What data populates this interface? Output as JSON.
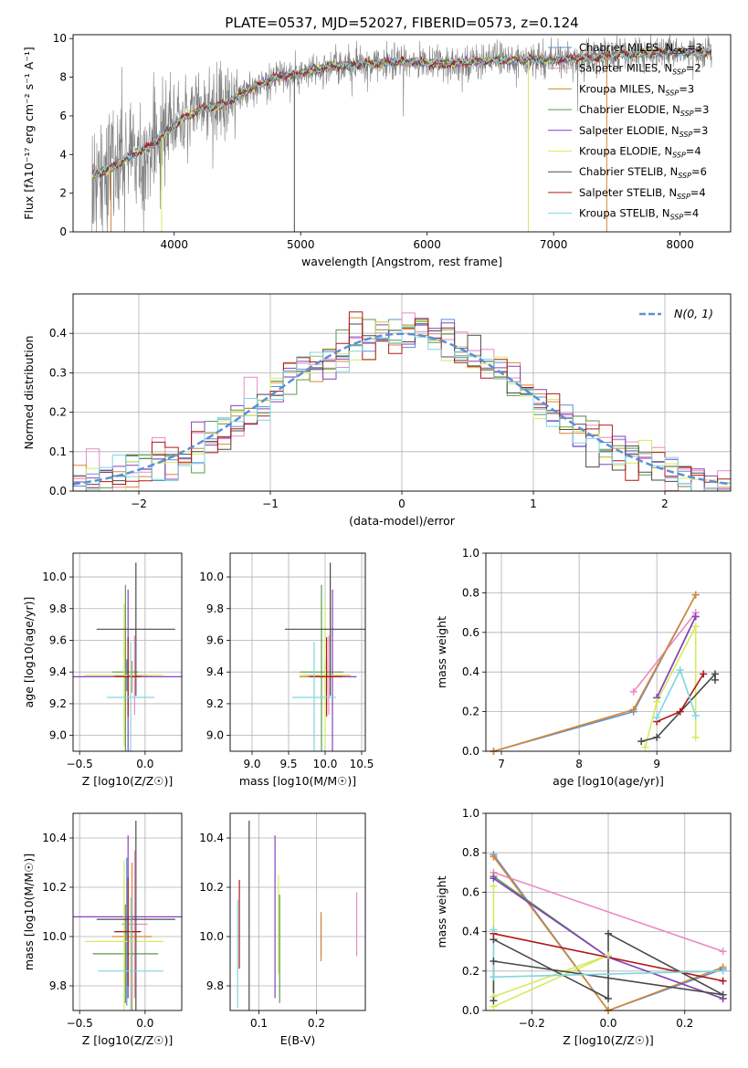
{
  "title": "PLATE=0537, MJD=52027, FIBERID=0573, z=0.124",
  "colors": {
    "Chabrier MILES": "#5a8fd6",
    "Salpeter MILES": "#e98ac4",
    "Kroupa MILES": "#d9882f",
    "Chabrier ELODIE": "#5a9a4a",
    "Salpeter ELODIE": "#8a3fbf",
    "Kroupa ELODIE": "#d6ea5e",
    "Chabrier STELIB": "#4a4a4a",
    "Salpeter STELIB": "#b01818",
    "Kroupa STELIB": "#7fd6e0"
  },
  "chart_data": [
    {
      "id": "spectrum",
      "type": "line",
      "xlabel": "wavelength [Angstrom, rest frame]",
      "ylabel": "Flux [fλ10⁻¹⁷ erg cm⁻² s⁻¹ A⁻¹]",
      "xlim": [
        3200,
        8400
      ],
      "ylim": [
        0,
        10.2
      ],
      "xticks": [
        4000,
        5000,
        6000,
        7000,
        8000
      ],
      "yticks": [
        0,
        2,
        4,
        6,
        8,
        10
      ],
      "grid": false,
      "legend_position": "right",
      "data_color": "#808080",
      "data_envelope": {
        "x": [
          3350,
          3500,
          3650,
          3800,
          3950,
          4100,
          4250,
          4400,
          4600,
          4800,
          5000,
          5200,
          5500,
          5800,
          6100,
          6400,
          6700,
          7000,
          7300,
          7600,
          7900,
          8250
        ],
        "y": [
          2.9,
          3.3,
          3.9,
          4.4,
          5.2,
          6.0,
          6.4,
          6.6,
          7.4,
          8.0,
          8.2,
          8.5,
          8.7,
          8.8,
          8.7,
          8.8,
          8.9,
          8.9,
          9.0,
          9.2,
          9.3,
          9.3
        ]
      },
      "legend": [
        {
          "label": "Chabrier MILES, N",
          "sub": "SSP",
          "suffix": "=3"
        },
        {
          "label": "Salpeter MILES, N",
          "sub": "SSP",
          "suffix": "=2"
        },
        {
          "label": "Kroupa MILES, N",
          "sub": "SSP",
          "suffix": "=3"
        },
        {
          "label": "Chabrier ELODIE, N",
          "sub": "SSP",
          "suffix": "=3"
        },
        {
          "label": "Salpeter ELODIE, N",
          "sub": "SSP",
          "suffix": "=3"
        },
        {
          "label": "Kroupa ELODIE, N",
          "sub": "SSP",
          "suffix": "=4"
        },
        {
          "label": "Chabrier STELIB, N",
          "sub": "SSP",
          "suffix": "=6"
        },
        {
          "label": "Salpeter STELIB, N",
          "sub": "SSP",
          "suffix": "=4"
        },
        {
          "label": "Kroupa STELIB, N",
          "sub": "SSP",
          "suffix": "=4"
        }
      ]
    },
    {
      "id": "residuals",
      "type": "line",
      "xlabel": "(data-model)/error",
      "ylabel": "Normed distribution",
      "xlim": [
        -2.5,
        2.5
      ],
      "ylim": [
        0,
        0.5
      ],
      "xticks": [
        -2,
        -1,
        0,
        1,
        2
      ],
      "yticks": [
        0.0,
        0.1,
        0.2,
        0.3,
        0.4
      ],
      "grid": true,
      "legend": [
        "N(0, 1)"
      ],
      "reference_curve": "gaussian mean 0 sigma 1",
      "bin_width": 0.1
    },
    {
      "id": "age_vs_Z",
      "type": "scatter",
      "xlabel": "Z [log10(Z/Z☉)]",
      "ylabel": "age  [log10(age/yr)]",
      "xlim": [
        -0.55,
        0.28
      ],
      "ylim": [
        8.9,
        10.15
      ],
      "xticks": [
        -0.5,
        0.0
      ],
      "yticks": [
        9.0,
        9.2,
        9.4,
        9.6,
        9.8,
        10.0
      ],
      "grid": true,
      "points": [
        {
          "model": "Chabrier MILES",
          "x": -0.14,
          "xerr": 0.1,
          "y": 9.38,
          "yerr": 0.1
        },
        {
          "model": "Salpeter MILES",
          "x": -0.08,
          "xerr": 0.1,
          "y": 9.38,
          "yerr": 0.25
        },
        {
          "model": "Kroupa MILES",
          "x": -0.1,
          "xerr": 0.15,
          "y": 9.37,
          "yerr": 0.1
        },
        {
          "model": "Chabrier ELODIE",
          "x": -0.15,
          "xerr": 0.1,
          "y": 9.4,
          "yerr": 0.55
        },
        {
          "model": "Salpeter ELODIE",
          "x": -0.13,
          "xerr": 0.42,
          "y": 9.37,
          "yerr": 0.55
        },
        {
          "model": "Kroupa ELODIE",
          "x": -0.16,
          "xerr": 0.3,
          "y": 9.38,
          "yerr": 0.45
        },
        {
          "model": "Chabrier STELIB",
          "x": -0.07,
          "xerr": 0.3,
          "y": 9.67,
          "yerr": 0.42
        },
        {
          "model": "Salpeter STELIB",
          "x": -0.13,
          "xerr": 0.1,
          "y": 9.37,
          "yerr": 0.25
        },
        {
          "model": "Kroupa STELIB",
          "x": -0.11,
          "xerr": 0.18,
          "y": 9.24,
          "yerr": 0.35
        }
      ]
    },
    {
      "id": "age_vs_mass",
      "type": "scatter",
      "xlabel": "mass [log10(M/M☉)]",
      "ylabel": "",
      "xlim": [
        8.7,
        10.55
      ],
      "ylim": [
        8.9,
        10.15
      ],
      "xticks": [
        9.0,
        9.5,
        10.0,
        10.5
      ],
      "yticks": [
        9.0,
        9.2,
        9.4,
        9.6,
        9.8,
        10.0
      ],
      "grid": true,
      "points": [
        {
          "model": "Chabrier MILES",
          "x": 10.02,
          "xerr": 0.3,
          "y": 9.38,
          "yerr": 0.1
        },
        {
          "model": "Salpeter MILES",
          "x": 10.05,
          "xerr": 0.3,
          "y": 9.38,
          "yerr": 0.25
        },
        {
          "model": "Kroupa MILES",
          "x": 10.0,
          "xerr": 0.35,
          "y": 9.37,
          "yerr": 0.1
        },
        {
          "model": "Chabrier ELODIE",
          "x": 9.95,
          "xerr": 0.3,
          "y": 9.4,
          "yerr": 0.55
        },
        {
          "model": "Salpeter ELODIE",
          "x": 10.1,
          "xerr": 0.33,
          "y": 9.37,
          "yerr": 0.55
        },
        {
          "model": "Kroupa ELODIE",
          "x": 10.0,
          "xerr": 0.35,
          "y": 9.38,
          "yerr": 0.45
        },
        {
          "model": "Chabrier STELIB",
          "x": 10.07,
          "xerr": 0.62,
          "y": 9.67,
          "yerr": 0.42
        },
        {
          "model": "Salpeter STELIB",
          "x": 10.02,
          "xerr": 0.22,
          "y": 9.37,
          "yerr": 0.25
        },
        {
          "model": "Kroupa STELIB",
          "x": 9.85,
          "xerr": 0.3,
          "y": 9.24,
          "yerr": 0.35
        }
      ]
    },
    {
      "id": "massweight_vs_age",
      "type": "line",
      "xlabel": "age  [log10(age/yr)]",
      "ylabel": "mass weight",
      "xlim": [
        6.8,
        9.95
      ],
      "ylim": [
        0,
        1.0
      ],
      "xticks": [
        7,
        8,
        9
      ],
      "yticks": [
        0.0,
        0.2,
        0.4,
        0.6,
        0.8,
        1.0
      ],
      "grid": true,
      "series": [
        {
          "model": "Chabrier MILES",
          "x": [
            6.9,
            8.7,
            9.5
          ],
          "y": [
            0.0,
            0.2,
            0.79
          ]
        },
        {
          "model": "Salpeter MILES",
          "x": [
            8.7,
            9.5
          ],
          "y": [
            0.3,
            0.7
          ]
        },
        {
          "model": "Kroupa MILES",
          "x": [
            6.9,
            8.7,
            9.5
          ],
          "y": [
            0.0,
            0.21,
            0.79
          ]
        },
        {
          "model": "Chabrier ELODIE",
          "x": [
            9.0,
            9.5
          ],
          "y": [
            0.27,
            0.68
          ]
        },
        {
          "model": "Salpeter ELODIE",
          "x": [
            9.0,
            9.5
          ],
          "y": [
            0.27,
            0.68
          ]
        },
        {
          "model": "Kroupa ELODIE",
          "x": [
            8.85,
            9.0,
            9.5,
            9.5
          ],
          "y": [
            0.02,
            0.25,
            0.63,
            0.07
          ]
        },
        {
          "model": "Chabrier STELIB",
          "x": [
            8.8,
            9.0,
            9.75,
            9.75
          ],
          "y": [
            0.05,
            0.07,
            0.39,
            0.36
          ]
        },
        {
          "model": "Salpeter STELIB",
          "x": [
            9.0,
            9.3,
            9.6
          ],
          "y": [
            0.15,
            0.2,
            0.39
          ]
        },
        {
          "model": "Kroupa STELIB",
          "x": [
            9.0,
            9.3,
            9.5
          ],
          "y": [
            0.17,
            0.41,
            0.18
          ]
        }
      ]
    },
    {
      "id": "mass_vs_Z",
      "type": "scatter",
      "xlabel": "Z [log10(Z/Z☉)]",
      "ylabel": "mass [log10(M/M☉)]",
      "xlim": [
        -0.55,
        0.28
      ],
      "ylim": [
        9.7,
        10.5
      ],
      "xticks": [
        -0.5,
        0.0
      ],
      "yticks": [
        9.8,
        10.0,
        10.2,
        10.4
      ],
      "grid": true,
      "points": [
        {
          "model": "Chabrier MILES",
          "x": -0.14,
          "xerr": 0.1,
          "y": 10.02,
          "yerr": 0.3
        },
        {
          "model": "Salpeter MILES",
          "x": -0.08,
          "xerr": 0.1,
          "y": 10.05,
          "yerr": 0.3
        },
        {
          "model": "Kroupa MILES",
          "x": -0.1,
          "xerr": 0.15,
          "y": 10.0,
          "yerr": 0.3
        },
        {
          "model": "Chabrier ELODIE",
          "x": -0.15,
          "xerr": 0.25,
          "y": 9.93,
          "yerr": 0.2
        },
        {
          "model": "Salpeter ELODIE",
          "x": -0.13,
          "xerr": 0.42,
          "y": 10.08,
          "yerr": 0.33
        },
        {
          "model": "Kroupa ELODIE",
          "x": -0.16,
          "xerr": 0.3,
          "y": 9.98,
          "yerr": 0.33
        },
        {
          "model": "Chabrier STELIB",
          "x": -0.07,
          "xerr": 0.3,
          "y": 10.07,
          "yerr": 0.4
        },
        {
          "model": "Salpeter STELIB",
          "x": -0.13,
          "xerr": 0.1,
          "y": 10.02,
          "yerr": 0.22
        },
        {
          "model": "Kroupa STELIB",
          "x": -0.11,
          "xerr": 0.25,
          "y": 9.86,
          "yerr": 0.3
        }
      ]
    },
    {
      "id": "mass_vs_ebv",
      "type": "scatter",
      "xlabel": "E(B-V)",
      "ylabel": "",
      "xlim": [
        0.05,
        0.285
      ],
      "ylim": [
        9.7,
        10.5
      ],
      "xticks": [
        0.1,
        0.2
      ],
      "yticks": [
        9.8,
        10.0,
        10.2,
        10.4
      ],
      "grid": true,
      "points": [
        {
          "model": "Chabrier MILES",
          "x": 0.208,
          "y": 10.0,
          "yerr": 0.08
        },
        {
          "model": "Salpeter MILES",
          "x": 0.27,
          "y": 10.05,
          "yerr": 0.13
        },
        {
          "model": "Kroupa MILES",
          "x": 0.208,
          "y": 10.0,
          "yerr": 0.1
        },
        {
          "model": "Chabrier ELODIE",
          "x": 0.136,
          "y": 9.95,
          "yerr": 0.22
        },
        {
          "model": "Salpeter ELODIE",
          "x": 0.128,
          "y": 10.08,
          "yerr": 0.33
        },
        {
          "model": "Kroupa ELODIE",
          "x": 0.134,
          "y": 10.05,
          "yerr": 0.2
        },
        {
          "model": "Chabrier STELIB",
          "x": 0.083,
          "y": 10.07,
          "yerr": 0.4
        },
        {
          "model": "Salpeter STELIB",
          "x": 0.066,
          "y": 10.05,
          "yerr": 0.18
        },
        {
          "model": "Kroupa STELIB",
          "x": 0.063,
          "y": 9.93,
          "yerr": 0.22
        }
      ]
    },
    {
      "id": "massweight_vs_Z",
      "type": "line",
      "xlabel": "Z [log10(Z/Z☉)]",
      "ylabel": "mass weight",
      "xlim": [
        -0.32,
        0.32
      ],
      "ylim": [
        0,
        1.0
      ],
      "xticks": [
        -0.2,
        0.0,
        0.2
      ],
      "yticks": [
        0.0,
        0.2,
        0.4,
        0.6,
        0.8,
        1.0
      ],
      "grid": true,
      "series": [
        {
          "model": "Chabrier MILES",
          "x": [
            -0.3,
            0.0,
            0.3
          ],
          "y": [
            0.79,
            0.0,
            0.21
          ]
        },
        {
          "model": "Salpeter MILES",
          "x": [
            -0.3,
            0.3
          ],
          "y": [
            0.7,
            0.3
          ]
        },
        {
          "model": "Kroupa MILES",
          "x": [
            -0.3,
            0.0,
            0.3
          ],
          "y": [
            0.78,
            0.0,
            0.22
          ]
        },
        {
          "model": "Chabrier ELODIE",
          "x": [
            -0.3,
            0.0,
            0.3
          ],
          "y": [
            0.68,
            0.27,
            0.06
          ]
        },
        {
          "model": "Salpeter ELODIE",
          "x": [
            -0.3,
            0.0,
            0.3
          ],
          "y": [
            0.67,
            0.27,
            0.06
          ]
        },
        {
          "model": "Kroupa ELODIE",
          "x": [
            -0.3,
            -0.3,
            0.0,
            -0.3
          ],
          "y": [
            0.63,
            0.07,
            0.28,
            0.02
          ]
        },
        {
          "model": "Chabrier STELIB",
          "x": [
            -0.3,
            0.0,
            0.0,
            0.3,
            -0.3,
            -0.3
          ],
          "y": [
            0.36,
            0.06,
            0.39,
            0.08,
            0.25,
            0.05
          ]
        },
        {
          "model": "Salpeter STELIB",
          "x": [
            -0.3,
            0.3
          ],
          "y": [
            0.39,
            0.15
          ]
        },
        {
          "model": "Kroupa STELIB",
          "x": [
            -0.3,
            -0.3,
            0.3
          ],
          "y": [
            0.41,
            0.17,
            0.2
          ]
        }
      ]
    }
  ]
}
